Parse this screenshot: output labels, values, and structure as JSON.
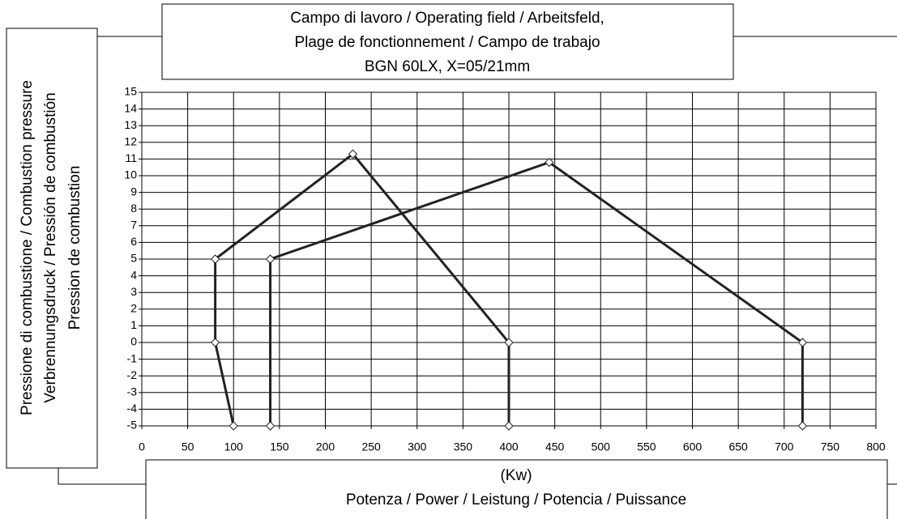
{
  "chart_data": {
    "type": "line",
    "title": [
      "Campo di lavoro / Operating field / Arbeitsfeld,",
      "Plage de fonctionnement / Campo de trabajo",
      "BGN 60LX, X=05/21mm"
    ],
    "y_label": [
      "Pressione di combustione / Combustion pressure",
      "Verbrennungsdruck / Pressión de combustión",
      "Pression de combustion"
    ],
    "x_label": [
      "(Kw)",
      "Potenza / Power / Leistung / Potencia / Puissance"
    ],
    "series": [
      {
        "x": [
          100,
          80,
          80,
          230,
          400,
          400
        ],
        "values": [
          -5,
          0,
          5,
          11.3,
          0,
          -5
        ],
        "color": "#222222"
      },
      {
        "x": [
          140,
          140,
          444,
          720,
          720
        ],
        "values": [
          -5,
          5,
          10.8,
          0,
          -5
        ],
        "color": "#222222"
      }
    ],
    "xlim": [
      0,
      800
    ],
    "xticks": [
      0,
      50,
      100,
      150,
      200,
      250,
      300,
      350,
      400,
      450,
      500,
      550,
      600,
      650,
      700,
      750,
      800
    ],
    "ylim": [
      -5,
      15
    ],
    "yticks": [
      -5,
      -4,
      -3,
      -2,
      -1,
      0,
      1,
      2,
      3,
      4,
      5,
      6,
      7,
      8,
      9,
      10,
      11,
      12,
      13,
      14,
      15
    ],
    "grid": true
  }
}
